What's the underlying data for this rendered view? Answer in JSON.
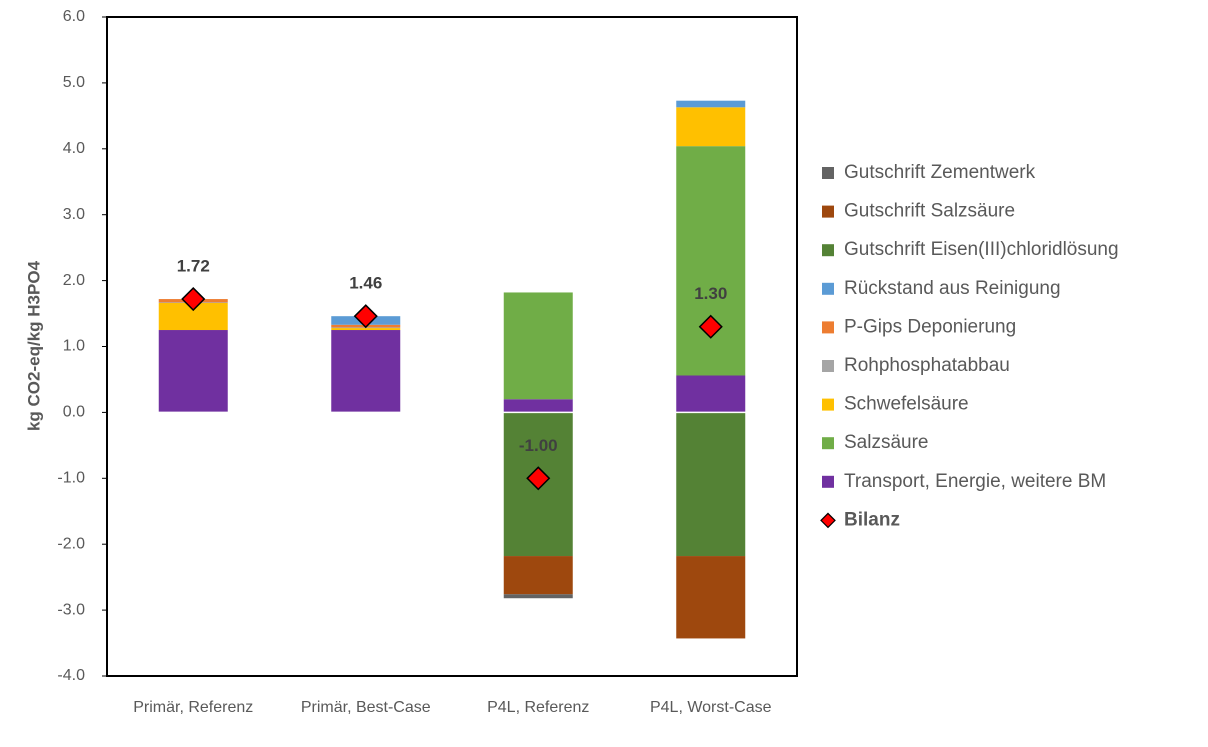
{
  "chart_data": {
    "type": "bar",
    "stacked": true,
    "y_label": "kg CO2-eq/kg H3PO4",
    "categories": [
      "Primär, Referenz",
      "Primär, Best-Case",
      "P4L, Referenz",
      "P4L, Worst-Case"
    ],
    "ylim": [
      -4,
      6
    ],
    "yticks": [
      {
        "value": -4,
        "label": "-4.0"
      },
      {
        "value": -3,
        "label": "-3.0"
      },
      {
        "value": -2,
        "label": "-2.0"
      },
      {
        "value": -1,
        "label": "-1.0"
      },
      {
        "value": 0,
        "label": "0.0"
      },
      {
        "value": 1,
        "label": "1.0"
      },
      {
        "value": 2,
        "label": "2.0"
      },
      {
        "value": 3,
        "label": "3.0"
      },
      {
        "value": 4,
        "label": "4.0"
      },
      {
        "value": 5,
        "label": "5.0"
      },
      {
        "value": 6,
        "label": "6.0"
      }
    ],
    "grid": false,
    "legend": "right",
    "series": [
      {
        "name": "Transport, Energie, weitere BM",
        "color": "#7030a0",
        "values": [
          1.25,
          1.25,
          0.2,
          0.56
        ]
      },
      {
        "name": "Salzsäure",
        "color": "#70ad47",
        "values": [
          0,
          0,
          1.62,
          3.48
        ]
      },
      {
        "name": "Schwefelsäure",
        "color": "#ffc000",
        "values": [
          0.41,
          0.03,
          0,
          0.59
        ]
      },
      {
        "name": "Rohphosphatabbau",
        "color": "#a5a5a5",
        "values": [
          0.01,
          0.01,
          0,
          0
        ]
      },
      {
        "name": "P-Gips Deponierung",
        "color": "#ed7d31",
        "values": [
          0.05,
          0.04,
          0,
          0
        ]
      },
      {
        "name": "Rückstand aus Reinigung",
        "color": "#5b9bd5",
        "values": [
          0,
          0.13,
          0,
          0.1
        ]
      },
      {
        "name": "Gutschrift Eisen(III)chloridlösung",
        "color": "#548235",
        "values": [
          0,
          0,
          -2.18,
          -2.18
        ]
      },
      {
        "name": "Gutschrift Salzsäure",
        "color": "#9e480e",
        "values": [
          0,
          0,
          -0.58,
          -1.25
        ]
      },
      {
        "name": "Gutschrift Zementwerk",
        "color": "#636363",
        "values": [
          0,
          0,
          -0.06,
          0
        ]
      }
    ],
    "bilanz": {
      "name": "Bilanz",
      "color": "#ff0000",
      "values": [
        1.72,
        1.46,
        -1.0,
        1.3
      ],
      "value_labels": [
        "1.72",
        "1.46",
        "-1.00",
        "1.30"
      ]
    }
  }
}
